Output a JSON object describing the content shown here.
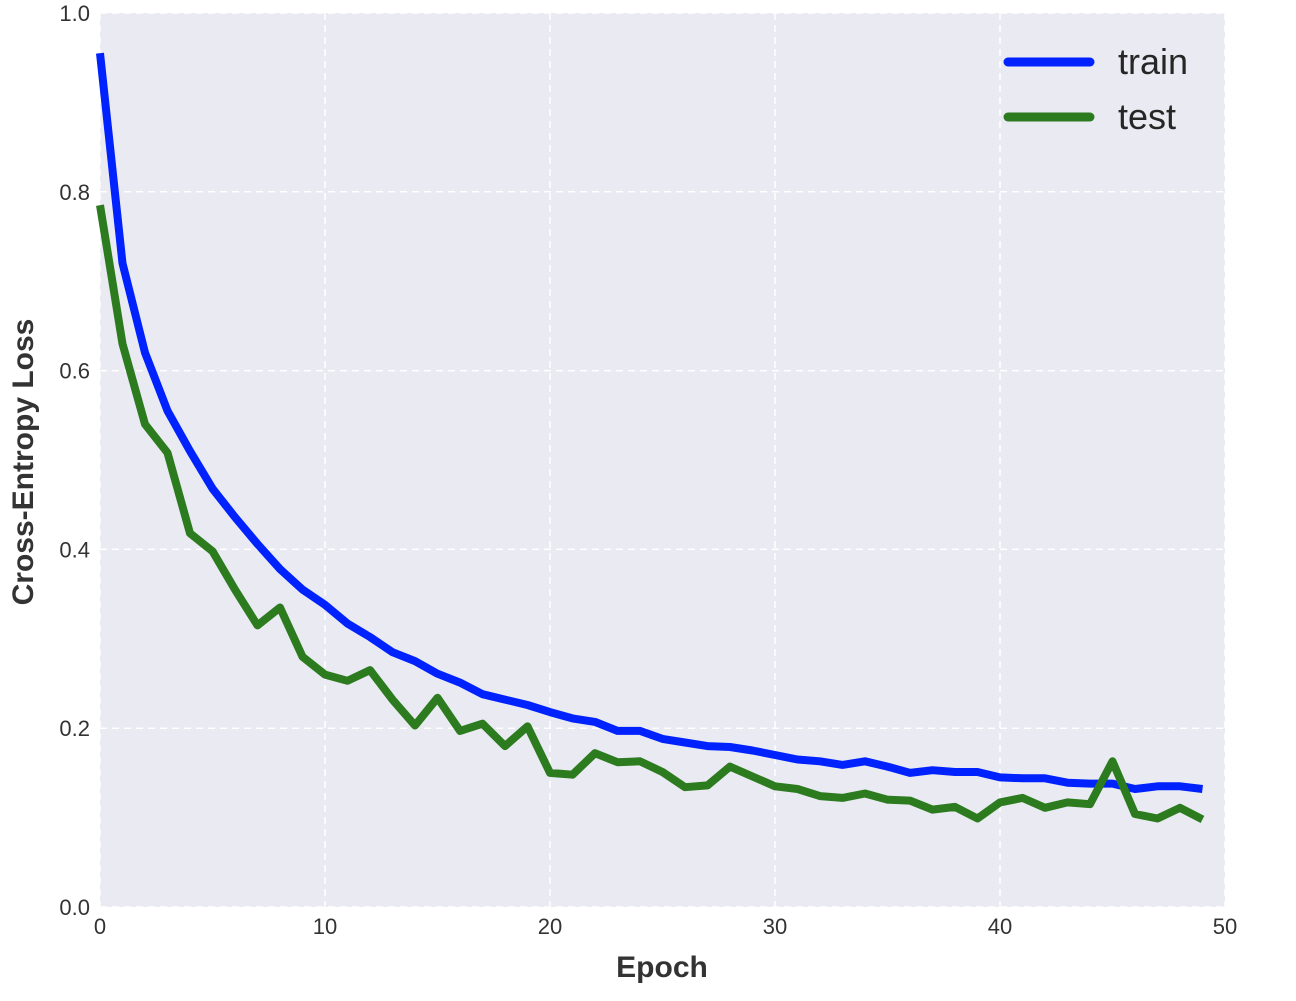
{
  "chart_data": {
    "type": "line",
    "title": "",
    "xlabel": "Epoch",
    "ylabel": "Cross-Entropy Loss",
    "xlim": [
      0,
      50
    ],
    "ylim": [
      0.0,
      1.0
    ],
    "xticks": [
      "0",
      "10",
      "20",
      "30",
      "40",
      "50"
    ],
    "yticks": [
      "0.0",
      "0.2",
      "0.4",
      "0.6",
      "0.8",
      "1.0"
    ],
    "grid": true,
    "legend_position": "top-right",
    "background_color": "#EAEAF2",
    "series": [
      {
        "name": "train",
        "color": "#0022FF",
        "x": [
          0,
          1,
          2,
          3,
          4,
          5,
          6,
          7,
          8,
          9,
          10,
          11,
          12,
          13,
          14,
          15,
          16,
          17,
          18,
          19,
          20,
          21,
          22,
          23,
          24,
          25,
          26,
          27,
          28,
          29,
          30,
          31,
          32,
          33,
          34,
          35,
          36,
          37,
          38,
          39,
          40,
          41,
          42,
          43,
          44,
          45,
          46,
          47,
          48,
          49
        ],
        "values": [
          0.955,
          0.72,
          0.62,
          0.555,
          0.51,
          0.468,
          0.436,
          0.406,
          0.378,
          0.355,
          0.338,
          0.317,
          0.302,
          0.285,
          0.275,
          0.261,
          0.251,
          0.238,
          0.232,
          0.226,
          0.218,
          0.211,
          0.207,
          0.197,
          0.197,
          0.188,
          0.184,
          0.18,
          0.179,
          0.175,
          0.17,
          0.165,
          0.163,
          0.159,
          0.163,
          0.157,
          0.15,
          0.153,
          0.151,
          0.151,
          0.145,
          0.144,
          0.144,
          0.139,
          0.138,
          0.138,
          0.132,
          0.135,
          0.135,
          0.132
        ]
      },
      {
        "name": "test",
        "color": "#2C7B1F",
        "x": [
          0,
          1,
          2,
          3,
          4,
          5,
          6,
          7,
          8,
          9,
          10,
          11,
          12,
          13,
          14,
          15,
          16,
          17,
          18,
          19,
          20,
          21,
          22,
          23,
          24,
          25,
          26,
          27,
          28,
          29,
          30,
          31,
          32,
          33,
          34,
          35,
          36,
          37,
          38,
          39,
          40,
          41,
          42,
          43,
          44,
          45,
          46,
          47,
          48,
          49
        ],
        "values": [
          0.785,
          0.63,
          0.54,
          0.508,
          0.418,
          0.398,
          0.355,
          0.315,
          0.335,
          0.28,
          0.26,
          0.253,
          0.265,
          0.232,
          0.203,
          0.234,
          0.197,
          0.205,
          0.18,
          0.202,
          0.15,
          0.148,
          0.172,
          0.162,
          0.163,
          0.151,
          0.134,
          0.136,
          0.157,
          0.146,
          0.135,
          0.132,
          0.124,
          0.122,
          0.127,
          0.12,
          0.119,
          0.109,
          0.112,
          0.099,
          0.117,
          0.122,
          0.111,
          0.117,
          0.115,
          0.163,
          0.104,
          0.099,
          0.111,
          0.098
        ]
      }
    ]
  }
}
